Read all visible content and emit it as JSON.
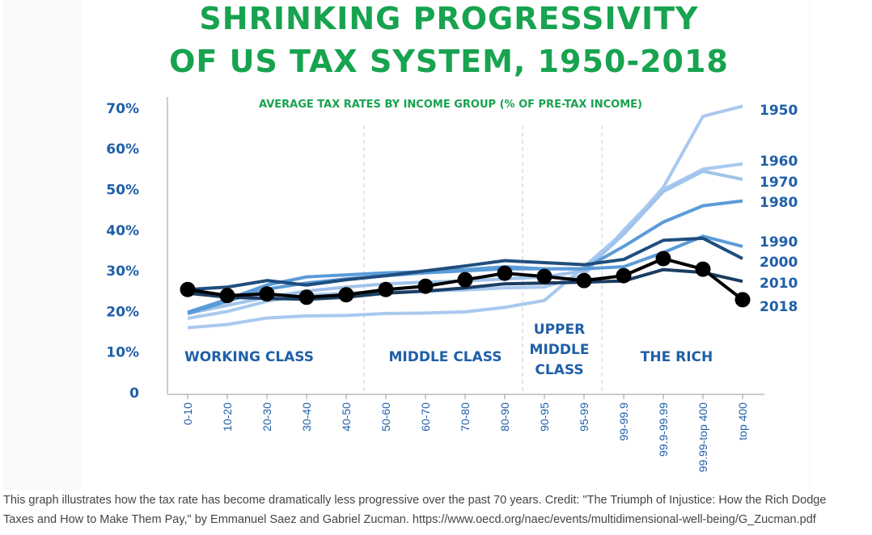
{
  "chart_data": {
    "type": "line",
    "title": [
      "SHRINKING PROGRESSIVITY",
      "OF US TAX SYSTEM, 1950-2018"
    ],
    "subtitle": "AVERAGE TAX RATES BY INCOME GROUP (% OF PRE-TAX INCOME)",
    "xlabel": "",
    "ylabel": "",
    "ylim": [
      0,
      70
    ],
    "yticks": [
      0,
      10,
      20,
      30,
      40,
      50,
      60,
      70
    ],
    "ytick_labels": [
      "0",
      "10%",
      "20%",
      "30%",
      "40%",
      "50%",
      "60%",
      "70%"
    ],
    "categories": [
      "0-10",
      "10-20",
      "20-30",
      "30-40",
      "40-50",
      "50-60",
      "60-70",
      "70-80",
      "80-90",
      "90-95",
      "95-99",
      "99-99.9",
      "99.9-99.99",
      "99.99-top 400",
      "top 400"
    ],
    "sections": [
      {
        "label": [
          "WORKING CLASS"
        ],
        "from": 0,
        "to": 4
      },
      {
        "label": [
          "MIDDLE CLASS"
        ],
        "from": 5,
        "to": 8
      },
      {
        "label": [
          "UPPER",
          "MIDDLE",
          "CLASS"
        ],
        "from": 9,
        "to": 10
      },
      {
        "label": [
          "THE RICH"
        ],
        "from": 11,
        "to": 14
      }
    ],
    "series": [
      {
        "name": "1950",
        "color": "#a9c9ee",
        "values": [
          16,
          16.8,
          18.4,
          18.9,
          19,
          19.5,
          19.6,
          19.9,
          21,
          22.7,
          31,
          39.5,
          50.5,
          68,
          70.5
        ]
      },
      {
        "name": "1960",
        "color": "#a9c9ee",
        "values": [
          18.3,
          20,
          22.5,
          24,
          24.5,
          24.8,
          25,
          25.3,
          25.8,
          26,
          29,
          40,
          50,
          55,
          56.3
        ]
      },
      {
        "name": "1970",
        "color": "#a0c3eb",
        "values": [
          19.5,
          21.5,
          23.5,
          25,
          26,
          26.8,
          27.2,
          27.5,
          28,
          28.5,
          30,
          39,
          49.5,
          54.5,
          52.5
        ]
      },
      {
        "name": "1980",
        "color": "#5b9bd8",
        "values": [
          19.5,
          22.5,
          25.5,
          27,
          28,
          28.8,
          29.5,
          30,
          30.5,
          30.5,
          30.5,
          36,
          42,
          46,
          47.2
        ]
      },
      {
        "name": "1990",
        "color": "#5b9bd8",
        "values": [
          19.8,
          23,
          26.5,
          28.5,
          29,
          29.5,
          29.8,
          30.3,
          31,
          30.5,
          30.5,
          31,
          34.5,
          38.5,
          36
        ]
      },
      {
        "name": "2000",
        "color": "#1f4e7e",
        "values": [
          25.4,
          26,
          27.6,
          26.5,
          27.8,
          28.8,
          30,
          31.2,
          32.5,
          32,
          31.5,
          32.8,
          37.5,
          38,
          33
        ]
      },
      {
        "name": "2010",
        "color": "#1b3d63",
        "values": [
          24.5,
          23.5,
          23.2,
          23,
          23.5,
          24.5,
          25,
          25.8,
          26.8,
          27,
          27.2,
          27.5,
          30.3,
          29.6,
          27.4
        ]
      },
      {
        "name": "2018",
        "color": "#000000",
        "markers": true,
        "values": [
          25.4,
          23.9,
          24.3,
          23.5,
          24.1,
          25.4,
          26.2,
          27.8,
          29.4,
          28.6,
          27.6,
          28.8,
          33,
          30.4,
          22.9
        ]
      }
    ],
    "legend": "right, labels at line ends"
  },
  "caption": {
    "line1": "This graph illustrates how the tax rate has become dramatically less progressive over the past 70 years. Credit: \"The Triumph of Injustice: How the Rich Dodge",
    "line2": "Taxes and How to Make Them Pay,\" by Emmanuel Saez and Gabriel Zucman. https://www.oecd.org/naec/events/multidimensional-well-being/G_Zucman.pdf"
  }
}
